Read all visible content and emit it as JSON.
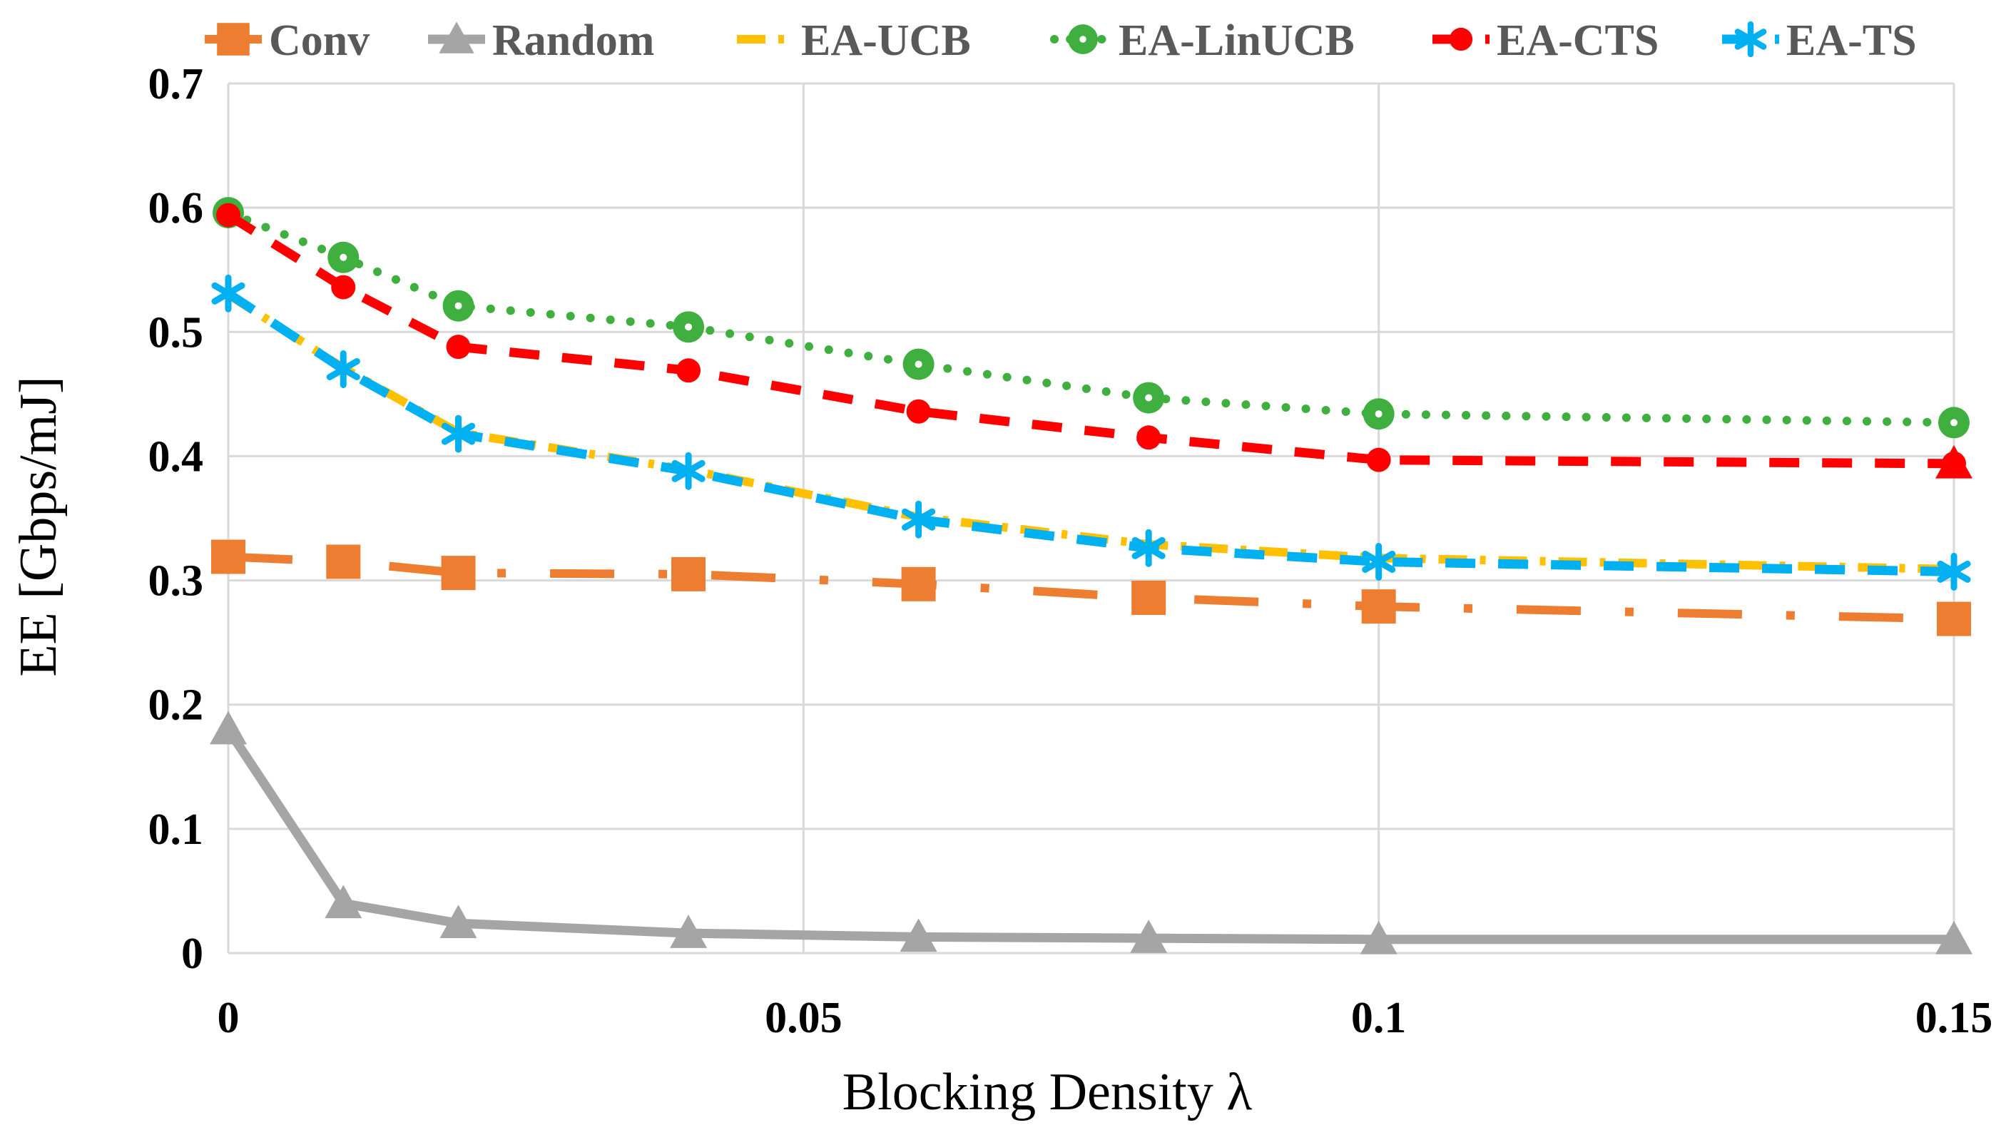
{
  "chart_data": {
    "type": "line",
    "title": "",
    "xlabel": "Blocking Density  λ",
    "ylabel": "EE  [Gbps/mJ]",
    "xlim": [
      0,
      0.15
    ],
    "ylim": [
      0,
      0.7
    ],
    "xticks": [
      0,
      0.05,
      0.1,
      0.15
    ],
    "xtick_labels": [
      "0",
      "0.05",
      "0.1",
      "0.15"
    ],
    "yticks": [
      0,
      0.1,
      0.2,
      0.3,
      0.4,
      0.5,
      0.6,
      0.7
    ],
    "ytick_labels": [
      "0",
      "0.1",
      "0.2",
      "0.3",
      "0.4",
      "0.5",
      "0.6",
      "0.7"
    ],
    "grid": true,
    "legend_position": "top",
    "x": [
      0,
      0.01,
      0.02,
      0.04,
      0.06,
      0.08,
      0.1,
      0.15
    ],
    "series": [
      {
        "name": "Conv",
        "color": "#ED7D31",
        "dash": "long-dash-dot",
        "marker": "square",
        "values": [
          0.319,
          0.315,
          0.306,
          0.305,
          0.297,
          0.286,
          0.279,
          0.269
        ]
      },
      {
        "name": "Random",
        "color": "#A5A5A5",
        "dash": "solid",
        "marker": "triangle",
        "values": [
          0.18,
          0.04,
          0.024,
          0.016,
          0.013,
          0.012,
          0.011,
          0.011
        ]
      },
      {
        "name": "EA-UCB",
        "color": "#FFC000",
        "dash": "dash-dot",
        "marker": "none",
        "values": [
          0.53,
          0.471,
          0.419,
          0.389,
          0.351,
          0.329,
          0.318,
          0.309
        ]
      },
      {
        "name": "EA-LinUCB",
        "color": "#3FAF3F",
        "dash": "dotted",
        "marker": "circle",
        "values": [
          0.596,
          0.56,
          0.521,
          0.504,
          0.474,
          0.447,
          0.434,
          0.427
        ]
      },
      {
        "name": "EA-CTS",
        "color": "#FF0000",
        "dash": "dashed",
        "marker": "dot",
        "values": [
          0.594,
          0.536,
          0.488,
          0.469,
          0.436,
          0.415,
          0.397,
          0.394
        ]
      },
      {
        "name": "EA-TS",
        "color": "#00B0F0",
        "dash": "dashed",
        "marker": "star",
        "values": [
          0.531,
          0.47,
          0.418,
          0.388,
          0.349,
          0.326,
          0.315,
          0.307
        ]
      }
    ]
  }
}
